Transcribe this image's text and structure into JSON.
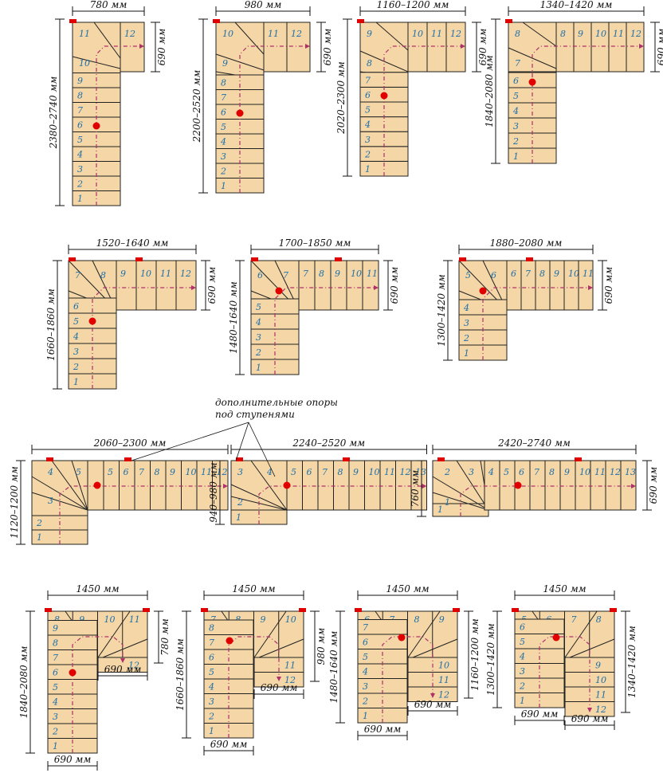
{
  "colors": {
    "step": "#f4d6a7",
    "number": "#1d6fa8",
    "path": "#b0306a",
    "marker": "#e00000"
  },
  "annotation": {
    "line1": "дополнительные опоры",
    "line2": "под ступенями"
  },
  "plans": [
    {
      "id": "r1a",
      "width": "780 мм",
      "height": "2380–2740 мм",
      "side": "690 мм"
    },
    {
      "id": "r1b",
      "width": "980 мм",
      "height": "2200–2520 мм",
      "side": "690 мм"
    },
    {
      "id": "r1c",
      "width": "1160–1200 мм",
      "height": "2020–2300 мм",
      "side": "690 мм"
    },
    {
      "id": "r1d",
      "width": "1340–1420 мм",
      "height": "1840–2080 мм",
      "side": "690 мм"
    },
    {
      "id": "r2a",
      "width": "1520–1640 мм",
      "height": "1660–1860 мм",
      "side": "690 мм"
    },
    {
      "id": "r2b",
      "width": "1700–1850 мм",
      "height": "1480–1640 мм",
      "side": "690 мм"
    },
    {
      "id": "r2c",
      "width": "1880–2080 мм",
      "height": "1300–1420 мм",
      "side": "690 мм"
    },
    {
      "id": "r3a",
      "width": "2060–2300 мм",
      "height": "1120–1200 мм"
    },
    {
      "id": "r3b",
      "width": "2240–2520 мм",
      "height": "940–980 мм"
    },
    {
      "id": "r3c",
      "width": "2420–2740 мм",
      "height": "760 мм",
      "side": "690 мм"
    },
    {
      "id": "r4a",
      "width": "1450 мм",
      "height": "1840–2080 мм",
      "side": "780 мм",
      "bottom1": "690 мм",
      "bottom2": "690 мм"
    },
    {
      "id": "r4b",
      "width": "1450 мм",
      "height": "1660–1860 мм",
      "side": "980 мм",
      "bottom1": "690 мм",
      "bottom2": "690 мм"
    },
    {
      "id": "r4c",
      "width": "1450 мм",
      "height": "1480–1640 мм",
      "side": "1160–1200 мм",
      "bottom1": "690 мм",
      "bottom2": "690 мм"
    },
    {
      "id": "r4d",
      "width": "1450 мм",
      "height": "1300–1420 мм",
      "side": "1340–1420 мм",
      "bottom1": "690 мм",
      "bottom2": "690 мм"
    }
  ]
}
